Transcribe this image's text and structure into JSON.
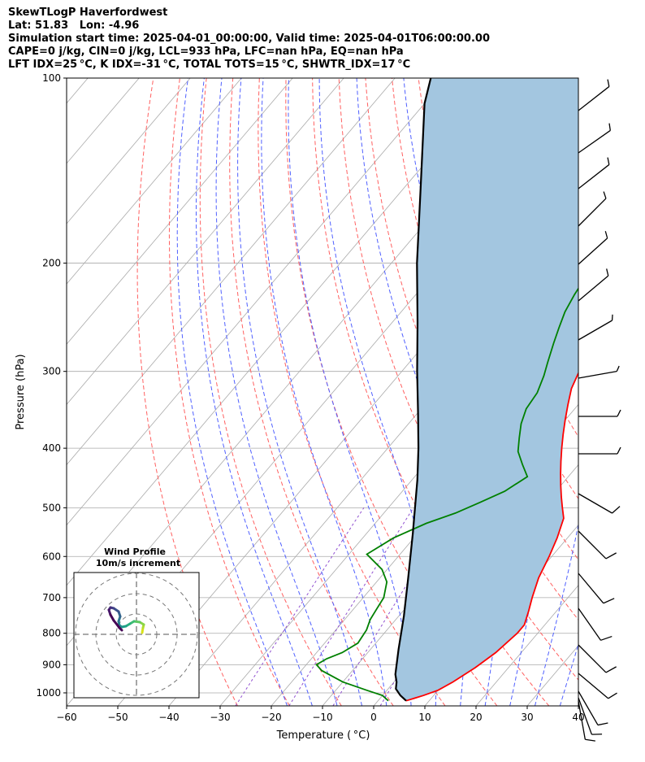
{
  "header": {
    "title": "SkewTLogP Haverfordwest",
    "location": "Lat: 51.83   Lon: -4.96",
    "times": "Simulation start time: 2025-04-01_00:00:00, Valid time: 2025-04-01T06:00:00.00",
    "parcel": "CAPE=0 j/kg, CIN=0 j/kg, LCL=933 hPa, LFC=nan hPa, EQ=nan hPa",
    "indices": "LFT IDX=25 °C, K IDX=-31 °C, TOTAL TOTS=15 °C, SHWTR_IDX=17 °C"
  },
  "colors": {
    "temperature": "#ff0000",
    "dewpoint": "#008000",
    "parcel": "#000000",
    "shade": "#a3c6e0",
    "dry_adiabats": "#ff6060",
    "moist_adiabats": "#5060ff",
    "isotherms": "#aaaaaa",
    "mixing_ratio": "#9050d0"
  },
  "chart_data": [
    {
      "type": "line",
      "subtype": "skew-t log-p",
      "xlabel": "Temperature ( °C)",
      "ylabel": "Pressure (hPa)",
      "xlim": [
        -60,
        40
      ],
      "ylim": [
        1050,
        100
      ],
      "x_ticks": [
        -60,
        -50,
        -40,
        -30,
        -20,
        -10,
        0,
        10,
        20,
        30,
        40
      ],
      "y_ticks": [
        100,
        200,
        300,
        400,
        500,
        600,
        700,
        800,
        900,
        1000
      ],
      "y_scale": "log",
      "grid": true,
      "series": [
        {
          "key": "temperature",
          "points": [
            [
              5.5,
              1030
            ],
            [
              8,
              1010
            ],
            [
              10,
              990
            ],
            [
              11.5,
              960
            ],
            [
              13.5,
              910
            ],
            [
              15,
              860
            ],
            [
              16,
              800
            ],
            [
              16,
              775
            ],
            [
              14.5,
              735
            ],
            [
              13,
              700
            ],
            [
              11,
              650
            ],
            [
              9.5,
              600
            ],
            [
              8,
              560
            ],
            [
              6,
              520
            ],
            [
              4,
              500
            ],
            [
              2,
              480
            ],
            [
              0,
              460
            ],
            [
              -2,
              440
            ],
            [
              -4,
              420
            ],
            [
              -6,
              400
            ],
            [
              -8,
              380
            ],
            [
              -10,
              360
            ],
            [
              -12,
              340
            ],
            [
              -14,
              320
            ],
            [
              -15,
              305
            ],
            [
              -16,
              290
            ],
            [
              -17,
              275
            ],
            [
              -18,
              260
            ],
            [
              -19,
              245
            ],
            [
              -20.5,
              230
            ],
            [
              -22,
              215
            ],
            [
              -23,
              205
            ],
            [
              -23.5,
              195
            ],
            [
              -23,
              185
            ],
            [
              -22,
              172
            ],
            [
              -20.5,
              160
            ],
            [
              -18,
              150
            ],
            [
              -16,
              140
            ],
            [
              -13,
              130
            ],
            [
              -10,
              122
            ],
            [
              -7,
              114
            ],
            [
              -4,
              108
            ],
            [
              -1,
              102
            ],
            [
              1,
              100
            ]
          ]
        },
        {
          "key": "dewpoint",
          "points": [
            [
              2,
              1030
            ],
            [
              0,
              1010
            ],
            [
              -4,
              990
            ],
            [
              -10,
              960
            ],
            [
              -16,
              920
            ],
            [
              -18,
              900
            ],
            [
              -17,
              880
            ],
            [
              -15,
              860
            ],
            [
              -13.5,
              830
            ],
            [
              -14,
              790
            ],
            [
              -15,
              760
            ],
            [
              -15.5,
              730
            ],
            [
              -16,
              700
            ],
            [
              -18,
              660
            ],
            [
              -21,
              630
            ],
            [
              -26.5,
              595
            ],
            [
              -24,
              560
            ],
            [
              -20,
              530
            ],
            [
              -16,
              510
            ],
            [
              -13,
              490
            ],
            [
              -10,
              470
            ],
            [
              -8,
              445
            ],
            [
              -11,
              425
            ],
            [
              -14,
              405
            ],
            [
              -16,
              385
            ],
            [
              -18,
              365
            ],
            [
              -19.5,
              345
            ],
            [
              -20,
              325
            ],
            [
              -21.5,
              305
            ],
            [
              -23,
              290
            ],
            [
              -25,
              270
            ],
            [
              -26.5,
              255
            ],
            [
              -28,
              240
            ],
            [
              -29,
              225
            ],
            [
              -30,
              205
            ],
            [
              -30.5,
              195
            ],
            [
              -30.5,
              185
            ],
            [
              -30.5,
              175
            ],
            [
              -31,
              165
            ],
            [
              -32,
              155
            ],
            [
              -33.5,
              145
            ],
            [
              -35.5,
              135
            ],
            [
              -37,
              126
            ],
            [
              -38,
              118
            ],
            [
              -37.5,
              112
            ],
            [
              -36,
              107
            ],
            [
              -34,
              103
            ],
            [
              -33,
              100
            ]
          ]
        },
        {
          "key": "parcel",
          "points": [
            [
              5.5,
              1030
            ],
            [
              3.5,
              1010
            ],
            [
              1.5,
              985
            ],
            [
              0.5,
              960
            ],
            [
              -1,
              933
            ],
            [
              -4.5,
              850
            ],
            [
              -9,
              750
            ],
            [
              -14.5,
              650
            ],
            [
              -21,
              550
            ],
            [
              -29,
              450
            ],
            [
              -34,
              400
            ],
            [
              -40,
              350
            ],
            [
              -47,
              300
            ],
            [
              -55,
              250
            ],
            [
              -65,
              200
            ],
            [
              -77,
              150
            ],
            [
              -90,
              110
            ],
            [
              -93,
              100
            ]
          ]
        }
      ]
    },
    {
      "type": "scatter",
      "subtype": "hodograph",
      "title": "Wind Profile",
      "subtitle": "10m/s increment"
    }
  ]
}
